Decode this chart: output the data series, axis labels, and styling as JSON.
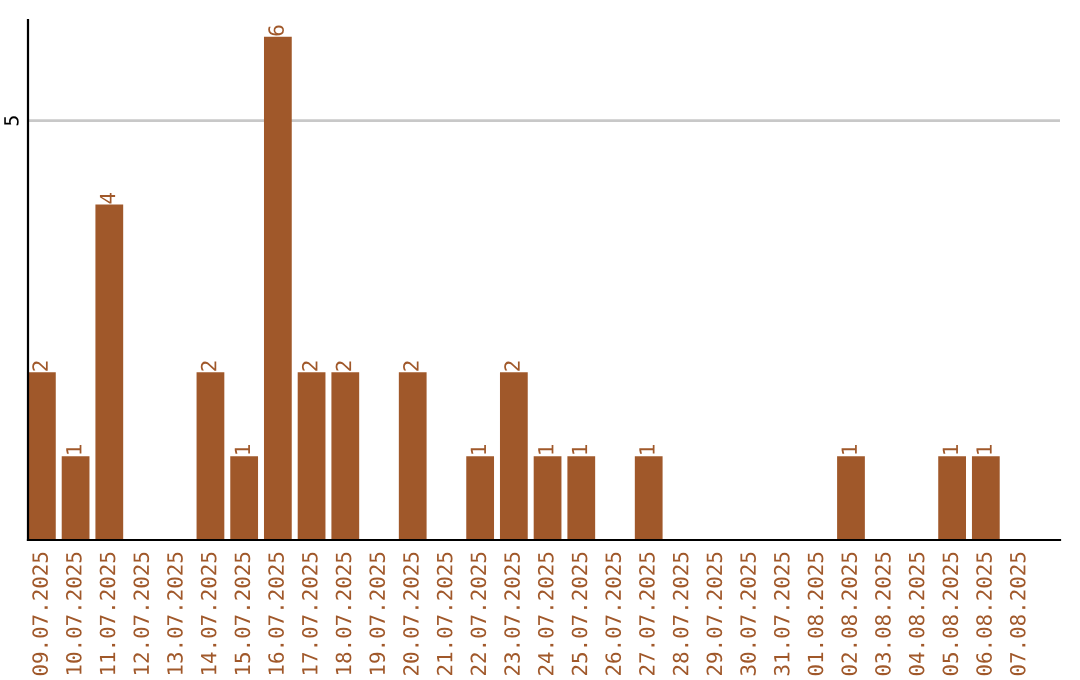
{
  "chart_data": {
    "type": "bar",
    "categories": [
      "09.07.2025",
      "10.07.2025",
      "11.07.2025",
      "12.07.2025",
      "13.07.2025",
      "14.07.2025",
      "15.07.2025",
      "16.07.2025",
      "17.07.2025",
      "18.07.2025",
      "19.07.2025",
      "20.07.2025",
      "21.07.2025",
      "22.07.2025",
      "23.07.2025",
      "24.07.2025",
      "25.07.2025",
      "26.07.2025",
      "27.07.2025",
      "28.07.2025",
      "29.07.2025",
      "30.07.2025",
      "31.07.2025",
      "01.08.2025",
      "02.08.2025",
      "03.08.2025",
      "04.08.2025",
      "05.08.2025",
      "06.08.2025",
      "07.08.2025"
    ],
    "values": [
      2,
      1,
      4,
      0,
      0,
      2,
      1,
      6,
      2,
      2,
      0,
      2,
      0,
      1,
      2,
      1,
      1,
      0,
      1,
      0,
      0,
      0,
      0,
      0,
      1,
      0,
      0,
      1,
      1,
      0
    ],
    "value_labels": [
      "2",
      "1",
      "4",
      null,
      null,
      "2",
      "1",
      "6",
      "2",
      "2",
      null,
      "2",
      null,
      "1",
      "2",
      "1",
      "1",
      null,
      "1",
      null,
      null,
      null,
      null,
      null,
      "1",
      null,
      null,
      "1",
      "1",
      null
    ],
    "color": "#a0582a",
    "ylim": [
      0,
      6.2
    ],
    "yticks": [
      5
    ],
    "grid": "y",
    "legend": false
  }
}
